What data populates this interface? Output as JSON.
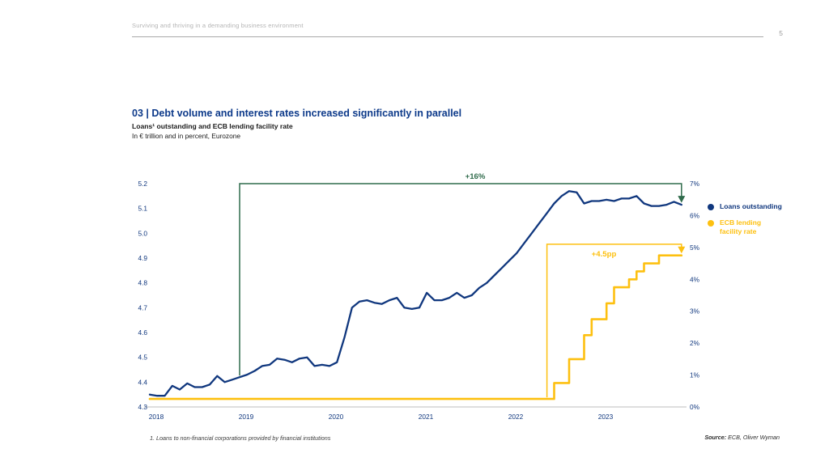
{
  "header": {
    "running_title": "Surviving and thriving in a demanding business environment",
    "page_number": "5"
  },
  "title_block": {
    "title": "03 | Debt volume and interest rates increased significantly in parallel",
    "subtitle": "Loans¹ outstanding and ECB lending facility rate",
    "unit_line": "In € trillion and in percent, Eurozone"
  },
  "colors": {
    "navy": "#10377E",
    "yellow": "#FDC010",
    "green": "#2F6B4B",
    "axis_gray": "#c9c9c9"
  },
  "legend": {
    "items": [
      {
        "label": "Loans outstanding",
        "color": "#10377E"
      },
      {
        "label": "ECB lending\nfacility rate",
        "color": "#FDC010"
      }
    ]
  },
  "annotations_text": {
    "loans_change": "+16%",
    "rate_change": "+4.5pp"
  },
  "footnote": "1. Loans to non-financial corporations provided by financial institutions",
  "source": {
    "prefix": "Source:",
    "text": " ECB, Oliver Wyman"
  },
  "chart_data": {
    "type": "line",
    "title": "Loans¹ outstanding and ECB lending facility rate",
    "unit": "In € trillion and in percent, Eurozone",
    "x_axis": {
      "ticks": [
        2018,
        2019,
        2020,
        2021,
        2022,
        2023
      ],
      "start": 2018.0,
      "end": 2023.9167
    },
    "y_left": {
      "label": "Loans outstanding, € trillion",
      "range": [
        4.3,
        5.2
      ],
      "ticks": [
        5.2,
        5.1,
        5.0,
        4.9,
        4.8,
        4.7,
        4.6,
        4.5,
        4.4,
        4.3
      ]
    },
    "y_right": {
      "label": "ECB lending facility rate, percent",
      "range": [
        0,
        7
      ],
      "ticks": [
        7,
        6,
        5,
        4,
        3,
        2,
        1,
        0
      ]
    },
    "grid": false,
    "legend_position": "right",
    "series": [
      {
        "name": "Loans outstanding",
        "axis": "left",
        "style": "line",
        "color": "#10377E",
        "start": 2018.0,
        "interval_months": 1,
        "values": [
          4.35,
          4.345,
          4.345,
          4.385,
          4.37,
          4.395,
          4.38,
          4.38,
          4.39,
          4.425,
          4.4,
          4.41,
          4.42,
          4.43,
          4.445,
          4.465,
          4.47,
          4.495,
          4.49,
          4.48,
          4.495,
          4.5,
          4.465,
          4.47,
          4.465,
          4.48,
          4.58,
          4.7,
          4.725,
          4.73,
          4.72,
          4.715,
          4.73,
          4.74,
          4.7,
          4.695,
          4.7,
          4.76,
          4.73,
          4.73,
          4.74,
          4.76,
          4.74,
          4.75,
          4.78,
          4.8,
          4.83,
          4.86,
          4.89,
          4.92,
          4.96,
          5.0,
          5.04,
          5.08,
          5.12,
          5.15,
          5.17,
          5.165,
          5.12,
          5.13,
          5.13,
          5.135,
          5.13,
          5.14,
          5.14,
          5.15,
          5.12,
          5.11,
          5.11,
          5.115,
          5.127,
          5.115
        ]
      },
      {
        "name": "ECB lending facility rate",
        "axis": "right",
        "style": "step",
        "color": "#FDC010",
        "start": 2018.0,
        "interval_months": 1,
        "values": [
          0.25,
          0.25,
          0.25,
          0.25,
          0.25,
          0.25,
          0.25,
          0.25,
          0.25,
          0.25,
          0.25,
          0.25,
          0.25,
          0.25,
          0.25,
          0.25,
          0.25,
          0.25,
          0.25,
          0.25,
          0.25,
          0.25,
          0.25,
          0.25,
          0.25,
          0.25,
          0.25,
          0.25,
          0.25,
          0.25,
          0.25,
          0.25,
          0.25,
          0.25,
          0.25,
          0.25,
          0.25,
          0.25,
          0.25,
          0.25,
          0.25,
          0.25,
          0.25,
          0.25,
          0.25,
          0.25,
          0.25,
          0.25,
          0.25,
          0.25,
          0.25,
          0.25,
          0.25,
          0.25,
          0.75,
          0.75,
          1.5,
          1.5,
          2.25,
          2.75,
          2.75,
          3.25,
          3.75,
          3.75,
          4.0,
          4.25,
          4.5,
          4.5,
          4.75,
          4.75,
          4.75,
          4.75
        ]
      }
    ],
    "annotations": [
      {
        "text": "+16%",
        "color": "#2F6B4B",
        "series_index": 0,
        "from_x": 2019.0,
        "bracket_level": 5.2,
        "bracket_axis": "left"
      },
      {
        "text": "+4.5pp",
        "color": "#FDC010",
        "series_index": 1,
        "from_x": 2022.42,
        "bracket_level": 5.1,
        "bracket_axis": "right"
      }
    ]
  }
}
